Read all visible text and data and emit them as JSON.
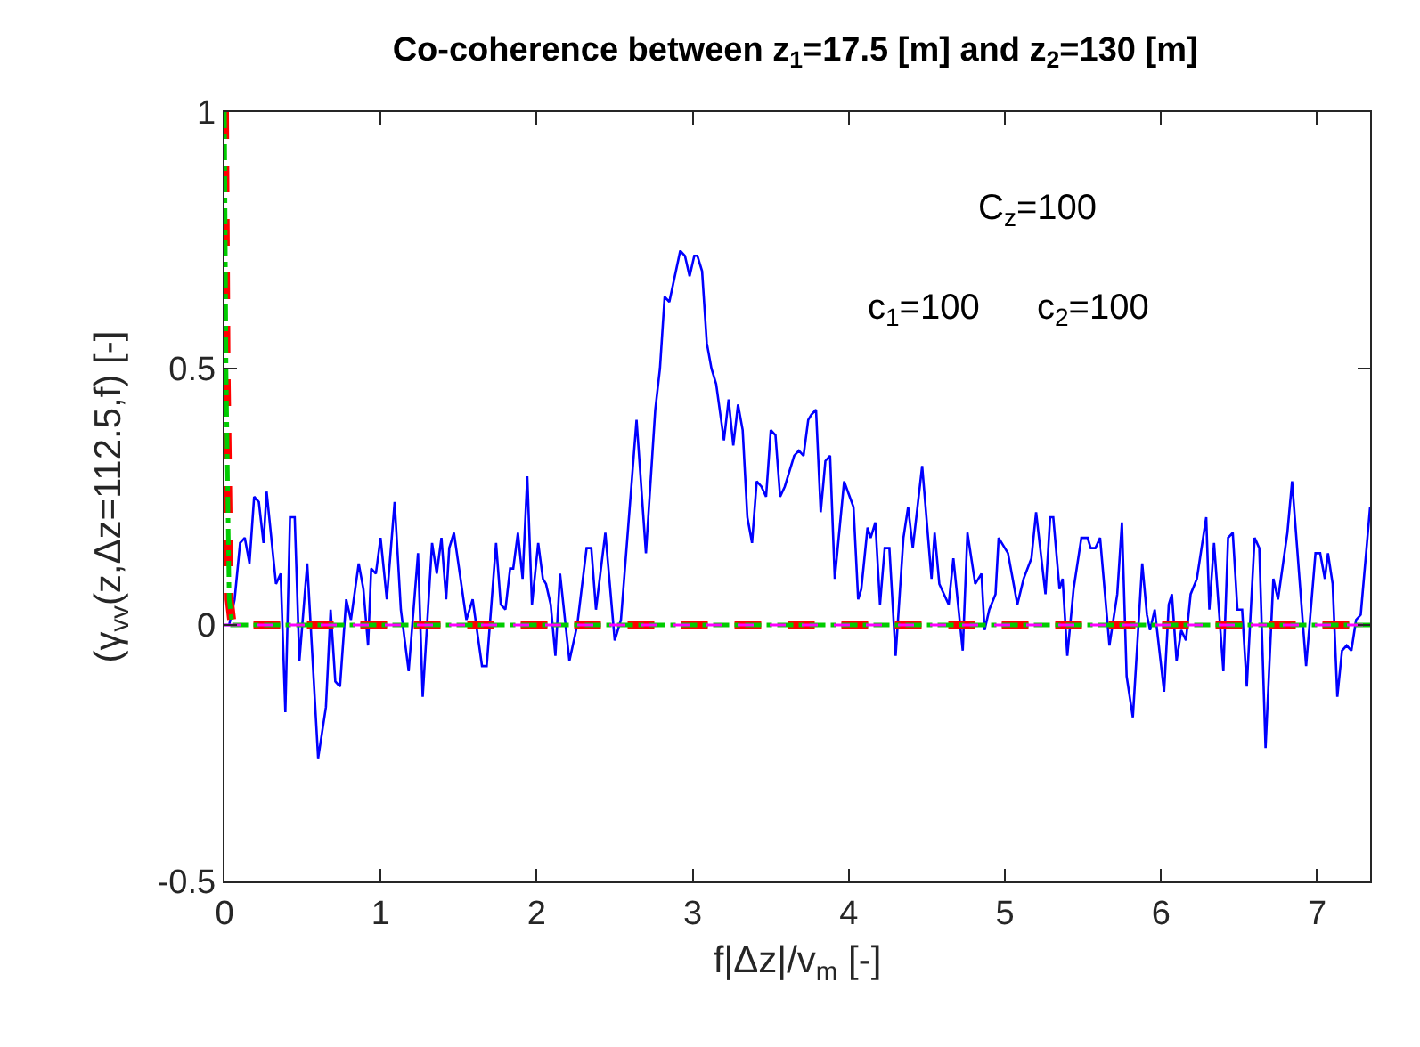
{
  "chart_data": {
    "type": "line",
    "title": "Co-coherence between z$_{1}$=17.5 [m] and z$_{2}$=130 [m]",
    "xlabel": "f|Δz|/v$_{m}$ [-]",
    "ylabel": "(γ$_{vv}$(z,Δz=112.5,f) [-]",
    "xlim": [
      0,
      7.34
    ],
    "ylim": [
      -0.5,
      1
    ],
    "xticks": [
      0,
      1,
      2,
      3,
      4,
      5,
      6,
      7
    ],
    "yticks": [
      -0.5,
      0,
      0.5,
      1
    ],
    "annotations": [
      "C$_{z}$=100",
      "c$_{1}$=100",
      "c$_{2}$=100"
    ],
    "series": [
      {
        "color": "#0000ff",
        "line_style": "solid",
        "x": [
          0.0,
          0.03,
          0.065,
          0.1,
          0.13,
          0.16,
          0.19,
          0.22,
          0.25,
          0.27,
          0.33,
          0.36,
          0.39,
          0.42,
          0.45,
          0.48,
          0.53,
          0.6,
          0.65,
          0.68,
          0.71,
          0.74,
          0.78,
          0.81,
          0.86,
          0.89,
          0.92,
          0.94,
          0.97,
          1.0,
          1.04,
          1.09,
          1.13,
          1.18,
          1.24,
          1.27,
          1.33,
          1.36,
          1.39,
          1.42,
          1.44,
          1.47,
          1.55,
          1.59,
          1.65,
          1.68,
          1.74,
          1.77,
          1.8,
          1.83,
          1.85,
          1.88,
          1.91,
          1.94,
          1.97,
          2.01,
          2.04,
          2.06,
          2.09,
          2.12,
          2.15,
          2.21,
          2.26,
          2.32,
          2.35,
          2.38,
          2.44,
          2.5,
          2.54,
          2.64,
          2.7,
          2.76,
          2.79,
          2.82,
          2.85,
          2.92,
          2.95,
          2.98,
          3.01,
          3.03,
          3.06,
          3.09,
          3.12,
          3.15,
          3.2,
          3.23,
          3.26,
          3.29,
          3.32,
          3.35,
          3.38,
          3.41,
          3.44,
          3.47,
          3.5,
          3.53,
          3.56,
          3.59,
          3.65,
          3.68,
          3.71,
          3.74,
          3.76,
          3.79,
          3.82,
          3.85,
          3.88,
          3.91,
          3.97,
          4.03,
          4.06,
          4.08,
          4.12,
          4.14,
          4.17,
          4.2,
          4.23,
          4.26,
          4.3,
          4.35,
          4.38,
          4.41,
          4.47,
          4.53,
          4.55,
          4.58,
          4.64,
          4.67,
          4.73,
          4.76,
          4.81,
          4.85,
          4.87,
          4.9,
          4.94,
          4.96,
          5.02,
          5.08,
          5.12,
          5.17,
          5.2,
          5.26,
          5.29,
          5.31,
          5.35,
          5.37,
          5.4,
          5.44,
          5.49,
          5.53,
          5.55,
          5.58,
          5.61,
          5.67,
          5.72,
          5.75,
          5.78,
          5.82,
          5.88,
          5.91,
          5.93,
          5.96,
          6.02,
          6.05,
          6.07,
          6.1,
          6.13,
          6.16,
          6.19,
          6.23,
          6.29,
          6.31,
          6.34,
          6.4,
          6.43,
          6.46,
          6.49,
          6.52,
          6.55,
          6.6,
          6.63,
          6.67,
          6.72,
          6.75,
          6.81,
          6.84,
          6.93,
          6.99,
          7.02,
          7.05,
          7.07,
          7.1,
          7.13,
          7.16,
          7.19,
          7.22,
          7.25,
          7.28,
          7.34
        ],
        "values": [
          0.0,
          0.0,
          0.05,
          0.16,
          0.17,
          0.12,
          0.25,
          0.24,
          0.16,
          0.26,
          0.08,
          0.1,
          -0.17,
          0.21,
          0.21,
          -0.07,
          0.12,
          -0.26,
          -0.16,
          0.03,
          -0.11,
          -0.12,
          0.05,
          0.01,
          0.12,
          0.07,
          -0.04,
          0.11,
          0.1,
          0.17,
          0.05,
          0.24,
          0.03,
          -0.09,
          0.14,
          -0.14,
          0.16,
          0.1,
          0.17,
          0.05,
          0.15,
          0.18,
          0.01,
          0.05,
          -0.08,
          -0.08,
          0.16,
          0.04,
          0.03,
          0.11,
          0.11,
          0.18,
          0.09,
          0.29,
          0.04,
          0.16,
          0.09,
          0.08,
          0.04,
          -0.06,
          0.1,
          -0.07,
          0.0,
          0.15,
          0.15,
          0.03,
          0.18,
          -0.03,
          0.01,
          0.4,
          0.14,
          0.42,
          0.5,
          0.64,
          0.63,
          0.73,
          0.72,
          0.68,
          0.72,
          0.72,
          0.69,
          0.55,
          0.5,
          0.47,
          0.36,
          0.44,
          0.35,
          0.43,
          0.38,
          0.21,
          0.16,
          0.28,
          0.27,
          0.25,
          0.38,
          0.37,
          0.25,
          0.27,
          0.33,
          0.34,
          0.33,
          0.4,
          0.41,
          0.42,
          0.22,
          0.32,
          0.33,
          0.09,
          0.28,
          0.23,
          0.05,
          0.07,
          0.19,
          0.17,
          0.2,
          0.04,
          0.15,
          0.15,
          -0.06,
          0.17,
          0.23,
          0.15,
          0.31,
          0.09,
          0.18,
          0.08,
          0.04,
          0.13,
          -0.05,
          0.18,
          0.08,
          0.1,
          -0.01,
          0.03,
          0.06,
          0.17,
          0.14,
          0.04,
          0.09,
          0.13,
          0.22,
          0.06,
          0.21,
          0.21,
          0.07,
          0.09,
          -0.06,
          0.07,
          0.17,
          0.17,
          0.15,
          0.15,
          0.17,
          -0.04,
          0.06,
          0.2,
          -0.1,
          -0.18,
          0.12,
          0.02,
          -0.01,
          0.03,
          -0.13,
          0.04,
          0.06,
          -0.07,
          -0.01,
          -0.03,
          0.06,
          0.09,
          0.21,
          0.03,
          0.16,
          -0.09,
          0.17,
          0.18,
          0.03,
          0.03,
          -0.12,
          0.17,
          0.15,
          -0.24,
          0.09,
          0.05,
          0.18,
          0.28,
          -0.08,
          0.14,
          0.14,
          0.09,
          0.14,
          0.08,
          -0.14,
          -0.05,
          -0.04,
          -0.05,
          0.01,
          0.02,
          0.23
        ]
      },
      {
        "color": "#ff0000",
        "line_style": "dashed",
        "x": [
          0,
          0.01,
          0.03,
          0.05,
          7.34
        ],
        "values": [
          1,
          0.5,
          0.05,
          0,
          0
        ]
      },
      {
        "color": "#00cc00",
        "line_style": "dashed",
        "x": [
          0,
          0.01,
          0.03,
          0.05,
          7.34
        ],
        "values": [
          1,
          0.5,
          0.05,
          0,
          0
        ]
      },
      {
        "color": "#ff00ff",
        "line_style": "dashed",
        "x": [
          0,
          7.34
        ],
        "values": [
          0,
          0
        ]
      }
    ]
  }
}
